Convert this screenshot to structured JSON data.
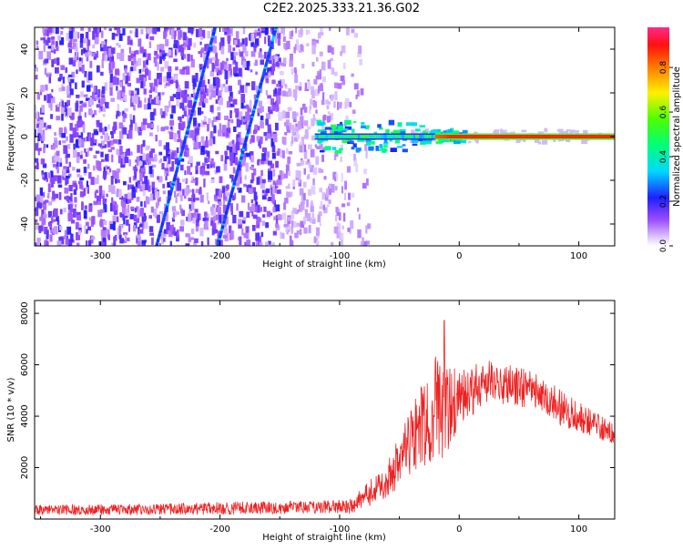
{
  "title": "C2E2.2025.333.21.36.G02",
  "colorbar": {
    "label": "Normalized spectral amplitude",
    "ticks": [
      "0.0",
      "0.2",
      "0.4",
      "0.6",
      "0.8"
    ],
    "range": [
      0,
      0.98
    ]
  },
  "chart_data": [
    {
      "type": "heatmap",
      "title": "C2E2.2025.333.21.36.G02",
      "xlabel": "Height of straight line (km)",
      "ylabel": "Frequency (Hz)",
      "xlim": [
        -355,
        130
      ],
      "ylim": [
        -50,
        50
      ],
      "xticks": [
        -300,
        -200,
        -100,
        0,
        100
      ],
      "yticks": [
        -40,
        -20,
        0,
        20,
        40
      ],
      "xtick_labels": [
        "-300",
        "-200",
        "-100",
        "0",
        "100"
      ],
      "ytick_labels": [
        "-40",
        "-20",
        "0",
        "20",
        "40"
      ],
      "colorscale": "rainbow (magenta-blue-cyan-green-yellow-red)",
      "features": {
        "noise_region_x": [
          -355,
          -85
        ],
        "streaks": [
          {
            "x_at_bottom": -253,
            "x_at_top": -204
          },
          {
            "x_at_bottom": -202,
            "x_at_top": -153
          }
        ],
        "signal_line": {
          "x_start": -120,
          "x_end": 130,
          "frequency_hz": 0,
          "amplitude_start": 0.45,
          "amplitude_end": 0.9
        }
      }
    },
    {
      "type": "line",
      "xlabel": "Height of straight line (km)",
      "ylabel": "SNR (10 * v/v)",
      "xlim": [
        -355,
        130
      ],
      "ylim": [
        0,
        8500
      ],
      "xticks": [
        -300,
        -200,
        -100,
        0,
        100
      ],
      "yticks": [
        2000,
        4000,
        6000,
        8000
      ],
      "xtick_labels": [
        "-300",
        "-200",
        "-100",
        "0",
        "100"
      ],
      "ytick_labels": [
        "2000",
        "4000",
        "6000",
        "8000"
      ],
      "color": "#ee2222",
      "envelope": {
        "x": [
          -355,
          -250,
          -200,
          -120,
          -90,
          -60,
          -40,
          -20,
          -15,
          0,
          25,
          60,
          90,
          130
        ],
        "mean": [
          350,
          380,
          420,
          450,
          500,
          1500,
          3000,
          4400,
          4000,
          4700,
          5400,
          5000,
          4200,
          3300
        ],
        "spread": [
          200,
          220,
          250,
          250,
          300,
          700,
          1400,
          2000,
          2000,
          1100,
          800,
          800,
          700,
          400
        ]
      }
    }
  ]
}
